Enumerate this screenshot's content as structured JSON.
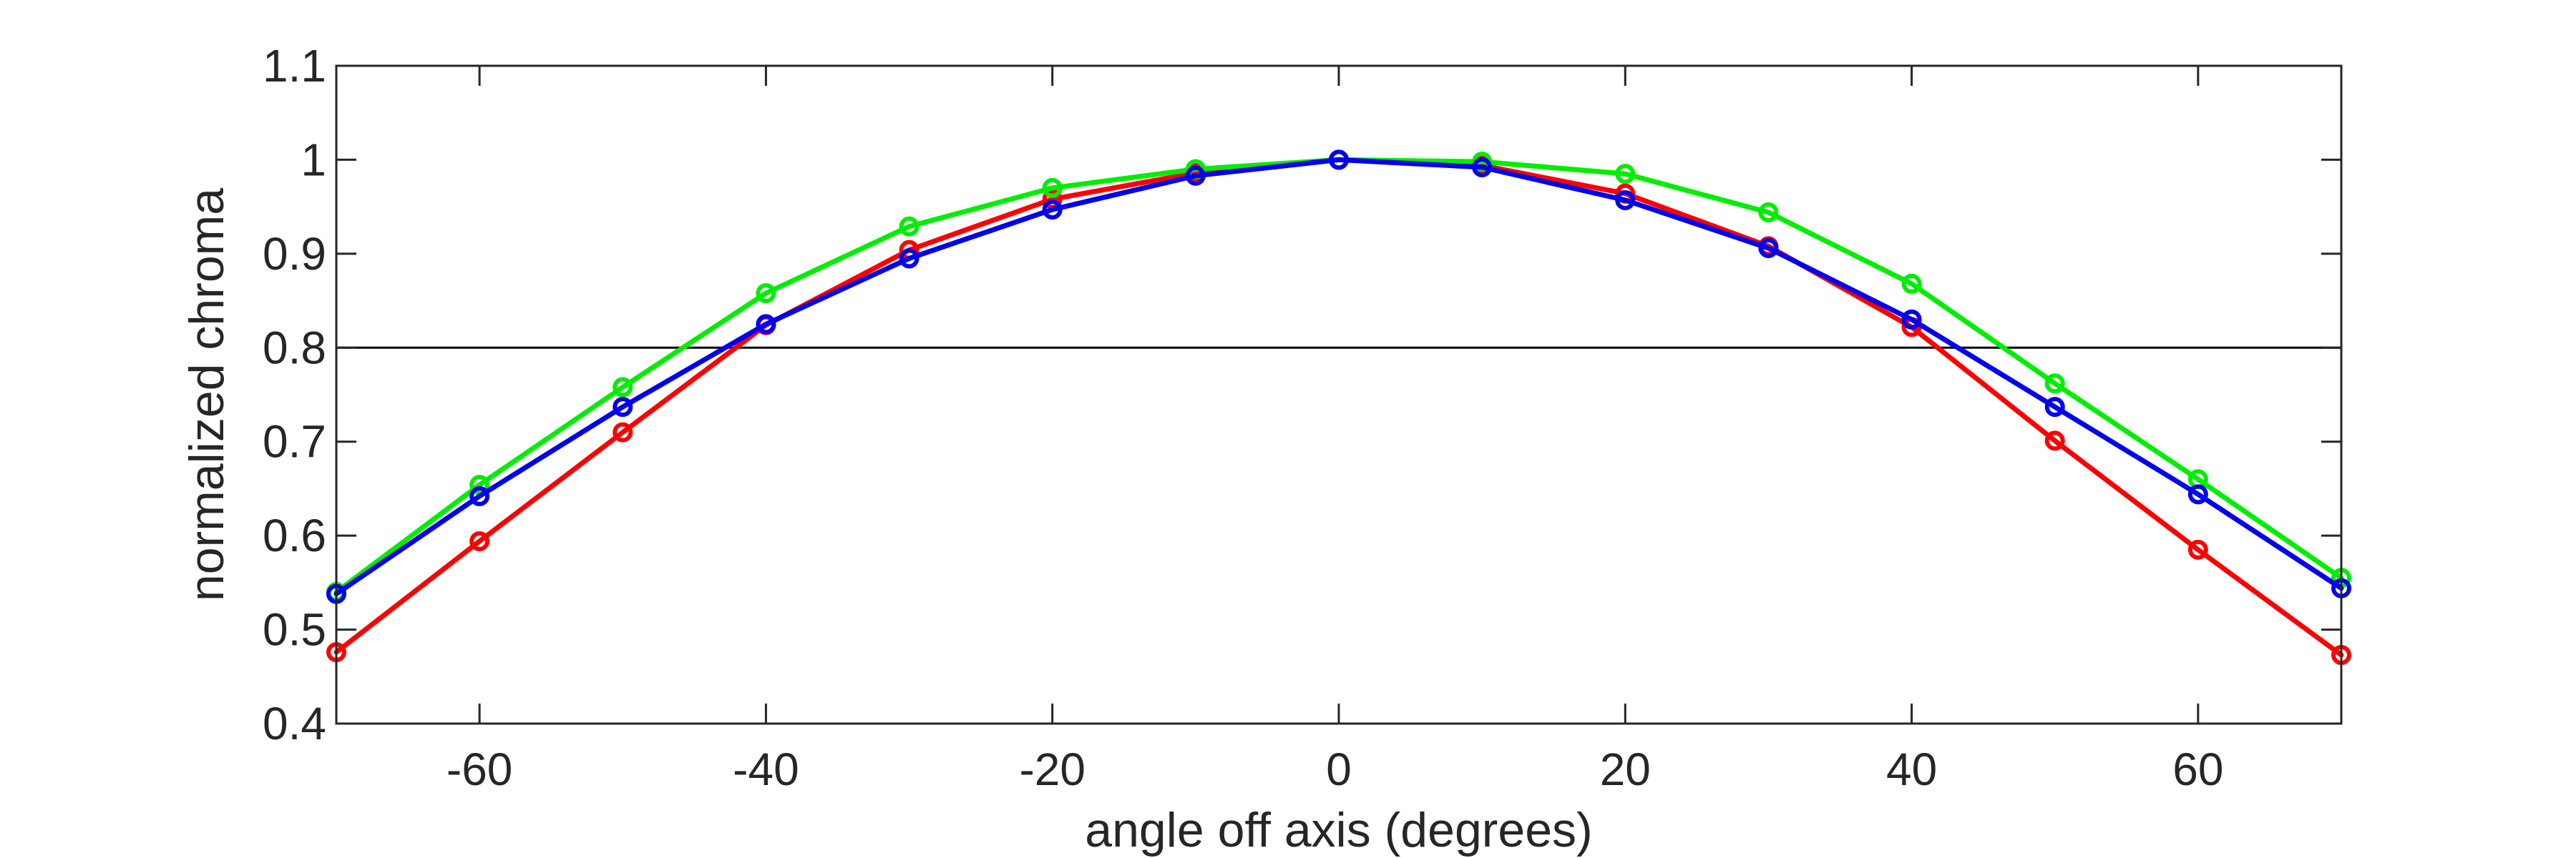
{
  "chart_data": {
    "type": "line",
    "xlabel": "angle off axis (degrees)",
    "ylabel": "normalized chroma",
    "xlim": [
      -70,
      70
    ],
    "ylim": [
      0.4,
      1.1
    ],
    "xticks": [
      -60,
      -40,
      -20,
      0,
      20,
      40,
      60
    ],
    "yticks": [
      0.4,
      0.5,
      0.6,
      0.7,
      0.8,
      0.9,
      1,
      1.1
    ],
    "ytick_labels": [
      "0.4",
      "0.5",
      "0.6",
      "0.7",
      "0.8",
      "0.9",
      "1",
      "1.1"
    ],
    "grid": false,
    "reference_line": {
      "y": 0.8,
      "color": "#000000"
    },
    "x": [
      -70,
      -60,
      -50,
      -40,
      -30,
      -20,
      -10,
      0,
      10,
      20,
      30,
      40,
      50,
      60,
      70
    ],
    "series": [
      {
        "color": "#ff0000",
        "values": [
          0.476,
          0.594,
          0.71,
          0.824,
          0.904,
          0.958,
          0.986,
          1.0,
          0.994,
          0.964,
          0.908,
          0.822,
          0.701,
          0.585,
          0.473
        ]
      },
      {
        "color": "#00ee00",
        "values": [
          0.54,
          0.654,
          0.758,
          0.858,
          0.929,
          0.97,
          0.99,
          1.0,
          0.998,
          0.985,
          0.944,
          0.868,
          0.762,
          0.66,
          0.555
        ]
      },
      {
        "color": "#0000ee",
        "values": [
          0.538,
          0.642,
          0.737,
          0.825,
          0.895,
          0.947,
          0.983,
          1.0,
          0.992,
          0.957,
          0.906,
          0.83,
          0.737,
          0.644,
          0.544
        ]
      }
    ]
  }
}
